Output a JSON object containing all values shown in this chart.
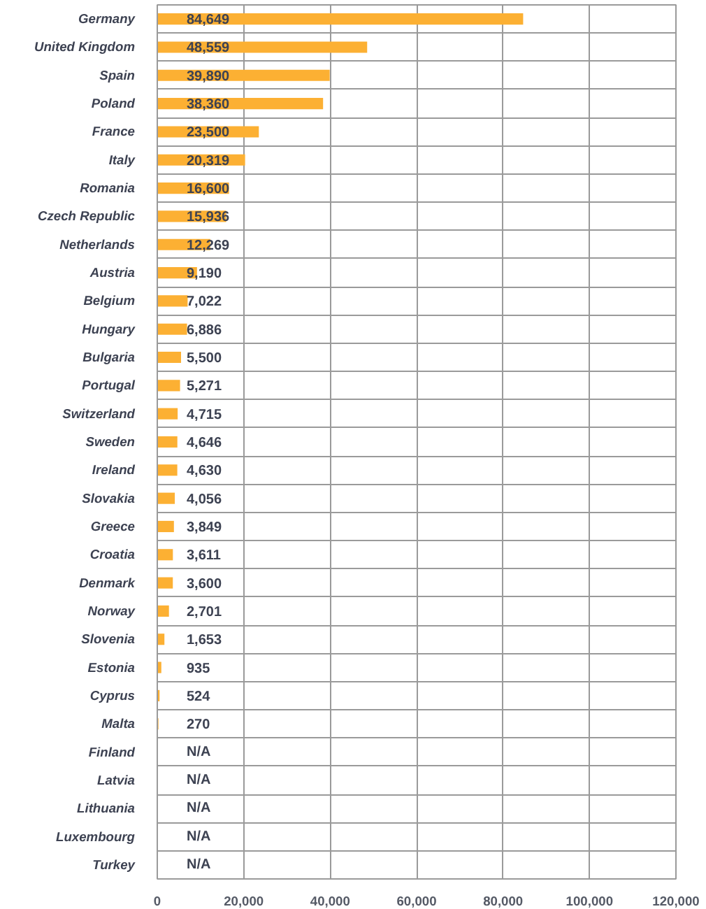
{
  "chart_data": {
    "type": "bar",
    "orientation": "horizontal",
    "categories": [
      "Germany",
      "United Kingdom",
      "Spain",
      "Poland",
      "France",
      "Italy",
      "Romania",
      "Czech Republic",
      "Netherlands",
      "Austria",
      "Belgium",
      "Hungary",
      "Bulgaria",
      "Portugal",
      "Switzerland",
      "Sweden",
      "Ireland",
      "Slovakia",
      "Greece",
      "Croatia",
      "Denmark",
      "Norway",
      "Slovenia",
      "Estonia",
      "Cyprus",
      "Malta",
      "Finland",
      "Latvia",
      "Lithuania",
      "Luxembourg",
      "Turkey"
    ],
    "values": [
      84649,
      48559,
      39890,
      38360,
      23500,
      20319,
      16600,
      15936,
      12269,
      9190,
      7022,
      6886,
      5500,
      5271,
      4715,
      4646,
      4630,
      4056,
      3849,
      3611,
      3600,
      2701,
      1653,
      935,
      524,
      270,
      null,
      null,
      null,
      null,
      null
    ],
    "value_labels": [
      "84,649",
      "48,559",
      "39,890",
      "38,360",
      "23,500",
      "20,319",
      "16,600",
      "15,936",
      "12,269",
      "9,190",
      "7,022",
      "6,886",
      "5,500",
      "5,271",
      "4,715",
      "4,646",
      "4,630",
      "4,056",
      "3,849",
      "3,611",
      "3,600",
      "2,701",
      "1,653",
      "935",
      "524",
      "270",
      "N/A",
      "N/A",
      "N/A",
      "N/A",
      "N/A"
    ],
    "color": "#fcb033",
    "xlim": [
      0,
      120000
    ],
    "xticks": [
      0,
      {
        "value": 20000,
        "label": "20,000"
      },
      {
        "value": 40000,
        "label": "40,000"
      },
      {
        "value": 60000,
        "label": "60,000"
      },
      {
        "value": 80000,
        "label": "80,000"
      },
      {
        "value": 100000,
        "label": "100,000"
      },
      {
        "value": 120000,
        "label": "120,000"
      }
    ],
    "grid": true
  }
}
